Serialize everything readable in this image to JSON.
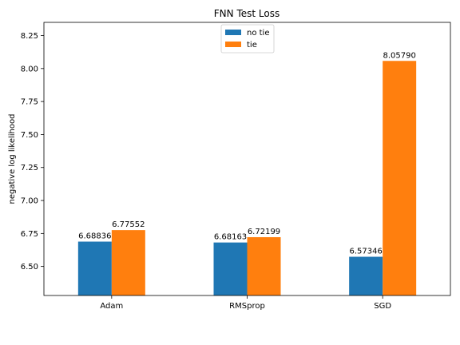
{
  "chart_data": {
    "type": "bar",
    "title": "FNN Test Loss",
    "xlabel": "",
    "ylabel": "negative log likelihood",
    "categories": [
      "Adam",
      "RMSprop",
      "SGD"
    ],
    "series": [
      {
        "name": "no tie",
        "color": "#1f77b4",
        "values": [
          6.68836,
          6.68163,
          6.57346
        ],
        "labels": [
          "6.68836",
          "6.68163",
          "6.57346"
        ]
      },
      {
        "name": "tie",
        "color": "#ff7f0e",
        "values": [
          6.77552,
          6.72199,
          8.0579
        ],
        "labels": [
          "6.77552",
          "6.72199",
          "8.05790"
        ]
      }
    ],
    "ylim": [
      6.28,
      8.35
    ],
    "yticks": [
      6.5,
      6.75,
      7.0,
      7.25,
      7.5,
      7.75,
      8.0,
      8.25
    ],
    "ytick_labels": [
      "6.50",
      "6.75",
      "7.00",
      "7.25",
      "7.50",
      "7.75",
      "8.00",
      "8.25"
    ],
    "grid": false,
    "legend_position": "top-center"
  }
}
